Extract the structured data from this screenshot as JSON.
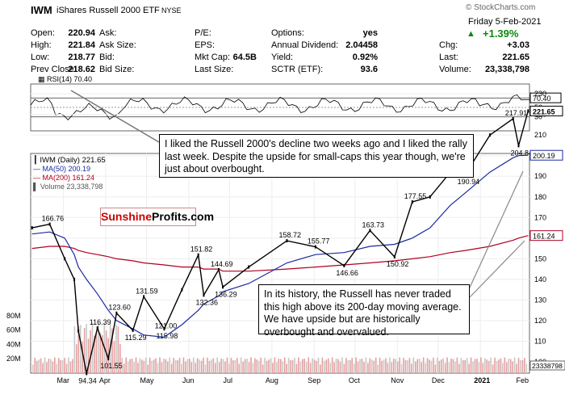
{
  "header": {
    "symbol": "IWM",
    "name": "iShares Russell 2000 ETF",
    "exchange": "NYSE",
    "copyright": "© StockCharts.com",
    "date_line": "Friday   5-Feb-2021",
    "change_pct": "+1.39%",
    "stats": [
      {
        "label": "Open:",
        "value": "220.94"
      },
      {
        "label": "High:",
        "value": "221.84"
      },
      {
        "label": "Low:",
        "value": "218.77"
      },
      {
        "label": "Prev Close:",
        "value": "218.62"
      },
      {
        "label": "Ask:",
        "value": ""
      },
      {
        "label": "Ask Size:",
        "value": ""
      },
      {
        "label": "Bid:",
        "value": ""
      },
      {
        "label": "Bid Size:",
        "value": ""
      },
      {
        "label": "P/E:",
        "value": ""
      },
      {
        "label": "EPS:",
        "value": ""
      },
      {
        "label": "Mkt Cap:",
        "value": "64.5B"
      },
      {
        "label": "Last Size:",
        "value": ""
      },
      {
        "label": "Options:",
        "value": "yes"
      },
      {
        "label": "Annual Dividend:",
        "value": "2.04458"
      },
      {
        "label": "Yield:",
        "value": "0.92%"
      },
      {
        "label": "SCTR (ETF):",
        "value": "93.6"
      },
      {
        "label": "Chg:",
        "value": "+3.03"
      },
      {
        "label": "Last:",
        "value": "221.65"
      },
      {
        "label": "Volume:",
        "value": "23,338,798"
      }
    ]
  },
  "rsi_panel": {
    "label": "RSI(14) 70.40",
    "ticks": [
      "70",
      "50",
      "30"
    ],
    "last_badge": "70.40"
  },
  "price_panel": {
    "legend": [
      "IWM (Daily) 221.65",
      "MA(50) 200.19",
      "MA(200) 161.24",
      "Volume 23,338,798"
    ],
    "price_ticks": [
      "230",
      "220",
      "210",
      "200",
      "190",
      "180",
      "170",
      "160",
      "150",
      "140",
      "130",
      "120",
      "110",
      "100"
    ],
    "volume_ticks": [
      "80M",
      "60M",
      "40M",
      "20M"
    ],
    "x_ticks": [
      "Mar",
      "Apr",
      "May",
      "Jun",
      "Jul",
      "Aug",
      "Sep",
      "Oct",
      "Nov",
      "Dec",
      "2021",
      "Feb"
    ],
    "badges": {
      "last": "221.65",
      "ma50": "200.19",
      "ma200": "161.24",
      "volume": "23338798"
    },
    "annotations": [
      {
        "label": "166.76",
        "x": "2020-02-20",
        "y": 166.76
      },
      {
        "label": "94.34",
        "x": "2020-03-18",
        "y": 94.34
      },
      {
        "label": "116.39",
        "x": "2020-03-26",
        "y": 116.39
      },
      {
        "label": "101.55",
        "x": "2020-04-03",
        "y": 101.55
      },
      {
        "label": "123.60",
        "x": "2020-04-09",
        "y": 123.6
      },
      {
        "label": "115.29",
        "x": "2020-04-21",
        "y": 115.29
      },
      {
        "label": "131.59",
        "x": "2020-04-29",
        "y": 131.59
      },
      {
        "label": "121.00",
        "x": "2020-05-13",
        "y": 121.0
      },
      {
        "label": "115.98",
        "x": "2020-05-14",
        "y": 115.98
      },
      {
        "label": "151.82",
        "x": "2020-06-08",
        "y": 151.82
      },
      {
        "label": "132.36",
        "x": "2020-06-12",
        "y": 132.36
      },
      {
        "label": "144.69",
        "x": "2020-06-23",
        "y": 144.69
      },
      {
        "label": "136.29",
        "x": "2020-06-26",
        "y": 136.29
      },
      {
        "label": "158.72",
        "x": "2020-08-12",
        "y": 158.72
      },
      {
        "label": "155.77",
        "x": "2020-09-02",
        "y": 155.77
      },
      {
        "label": "146.66",
        "x": "2020-09-23",
        "y": 146.66
      },
      {
        "label": "163.73",
        "x": "2020-10-12",
        "y": 163.73
      },
      {
        "label": "150.92",
        "x": "2020-10-30",
        "y": 150.92
      },
      {
        "label": "177.55",
        "x": "2020-11-12",
        "y": 177.55
      },
      {
        "label": "190.94",
        "x": "2020-12-21",
        "y": 190.94
      },
      {
        "label": "217.91",
        "x": "2021-01-25",
        "y": 217.91
      },
      {
        "label": "204.84",
        "x": "2021-01-29",
        "y": 204.84
      }
    ]
  },
  "logo": {
    "part1": "Sunshine",
    "part2": "Profits.com"
  },
  "callouts": {
    "top": "I liked the Russell 2000's decline two weeks ago and I liked the rally last week. Despite the upside for small-caps this year though, we're just about overbought.",
    "bottom": "In its history, the Russell has never traded this high above its 200-day moving average. We have upside but are historically overbought and overvalued."
  },
  "chart_data": {
    "type": "line",
    "title": "IWM iShares Russell 2000 ETF NYSE",
    "xlabel": "",
    "ylabel": "",
    "ylim": [
      90,
      232
    ],
    "x": [
      "2020-02-07",
      "2020-02-20",
      "2020-03-02",
      "2020-03-09",
      "2020-03-12",
      "2020-03-18",
      "2020-03-26",
      "2020-04-03",
      "2020-04-09",
      "2020-04-21",
      "2020-04-29",
      "2020-05-14",
      "2020-05-27",
      "2020-06-08",
      "2020-06-12",
      "2020-06-23",
      "2020-06-26",
      "2020-07-15",
      "2020-08-12",
      "2020-09-02",
      "2020-09-23",
      "2020-10-12",
      "2020-10-30",
      "2020-11-12",
      "2020-11-25",
      "2020-12-10",
      "2020-12-21",
      "2021-01-08",
      "2021-01-25",
      "2021-01-29",
      "2021-02-05"
    ],
    "series": [
      {
        "name": "IWM (Daily) 221.65",
        "values": [
          165,
          166.76,
          150,
          140,
          115,
          94.34,
          116.39,
          101.55,
          123.6,
          115.29,
          131.59,
          115.98,
          135,
          151.82,
          132.36,
          144.69,
          136.29,
          146,
          158.72,
          155.77,
          146.66,
          163.73,
          150.92,
          177.55,
          180,
          192,
          190.94,
          210,
          217.91,
          204.84,
          221.65
        ]
      },
      {
        "name": "MA(50) 200.19",
        "values": [
          162,
          163,
          160,
          152,
          146,
          140,
          133,
          125,
          120,
          116,
          113,
          112,
          118,
          125,
          128,
          132,
          134,
          138,
          148,
          152,
          153,
          156,
          157,
          160,
          165,
          176,
          182,
          192,
          199,
          200,
          200.19
        ]
      },
      {
        "name": "MA(200) 161.24",
        "values": [
          155,
          156,
          156,
          155,
          154,
          153,
          152,
          151,
          150,
          149,
          148,
          147,
          146,
          146,
          145,
          145,
          144,
          144,
          145,
          146,
          147,
          148,
          149,
          150,
          151,
          153,
          154,
          156,
          159,
          160,
          161.24
        ]
      }
    ],
    "rsi": {
      "name": "RSI(14) 70.40",
      "last": 70.4,
      "range": [
        0,
        100
      ]
    },
    "volume": {
      "name": "Volume 23,338,798",
      "last": 23338798
    }
  }
}
